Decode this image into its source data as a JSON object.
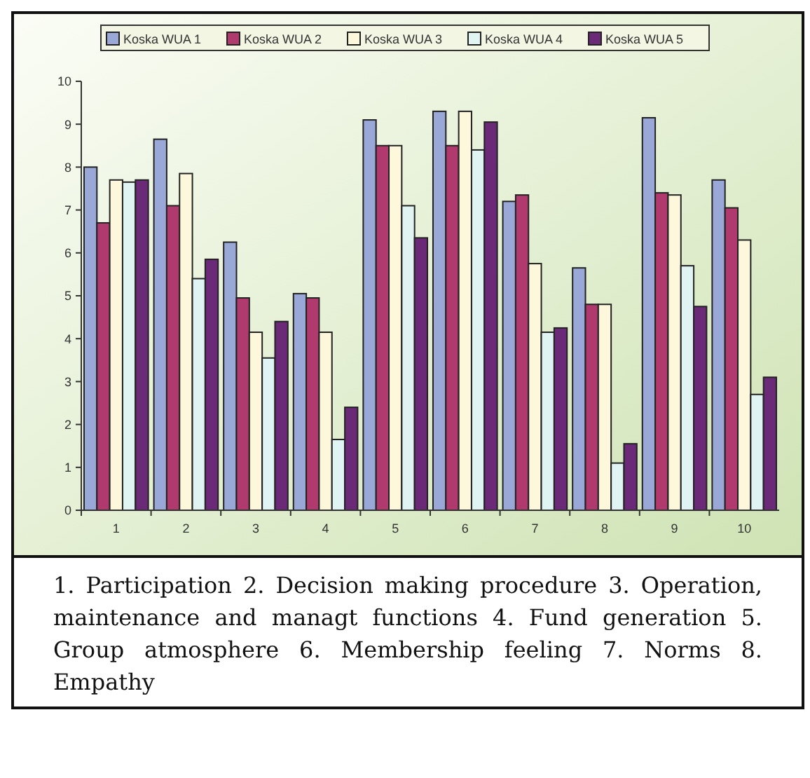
{
  "chart_data": {
    "type": "bar",
    "categories": [
      "1",
      "2",
      "3",
      "4",
      "5",
      "6",
      "7",
      "8",
      "9",
      "10"
    ],
    "series": [
      {
        "name": "Koska WUA 1",
        "color": "#9aa8d8",
        "values": [
          8.0,
          8.65,
          6.25,
          5.05,
          9.1,
          9.3,
          7.2,
          5.65,
          9.15,
          7.7
        ]
      },
      {
        "name": "Koska WUA 2",
        "color": "#b03a6e",
        "values": [
          6.7,
          7.1,
          4.95,
          4.95,
          8.5,
          8.5,
          7.35,
          4.8,
          7.4,
          7.05
        ]
      },
      {
        "name": "Koska WUA 3",
        "color": "#fdf8dc",
        "values": [
          7.7,
          7.85,
          4.15,
          4.15,
          8.5,
          9.3,
          5.75,
          4.8,
          7.35,
          6.3
        ]
      },
      {
        "name": "Koska WUA 4",
        "color": "#e0f4f4",
        "values": [
          7.65,
          5.4,
          3.55,
          1.65,
          7.1,
          8.4,
          4.15,
          1.1,
          5.7,
          2.7
        ]
      },
      {
        "name": "Koska WUA 5",
        "color": "#6a2a78",
        "values": [
          7.7,
          5.85,
          4.4,
          2.4,
          6.35,
          9.05,
          4.25,
          1.55,
          4.75,
          3.1
        ]
      }
    ],
    "ylim": [
      0,
      10
    ],
    "yticks": [
      0,
      1,
      2,
      3,
      4,
      5,
      6,
      7,
      8,
      9,
      10
    ],
    "legend": "top",
    "annotations": [
      "1. Participation   2. Decision making procedure 3. Operation, maintenance and managt functions 4. Fund generation 5. Group atmosphere  6. Membership feeling 7. Norms 8. Empathy"
    ]
  }
}
